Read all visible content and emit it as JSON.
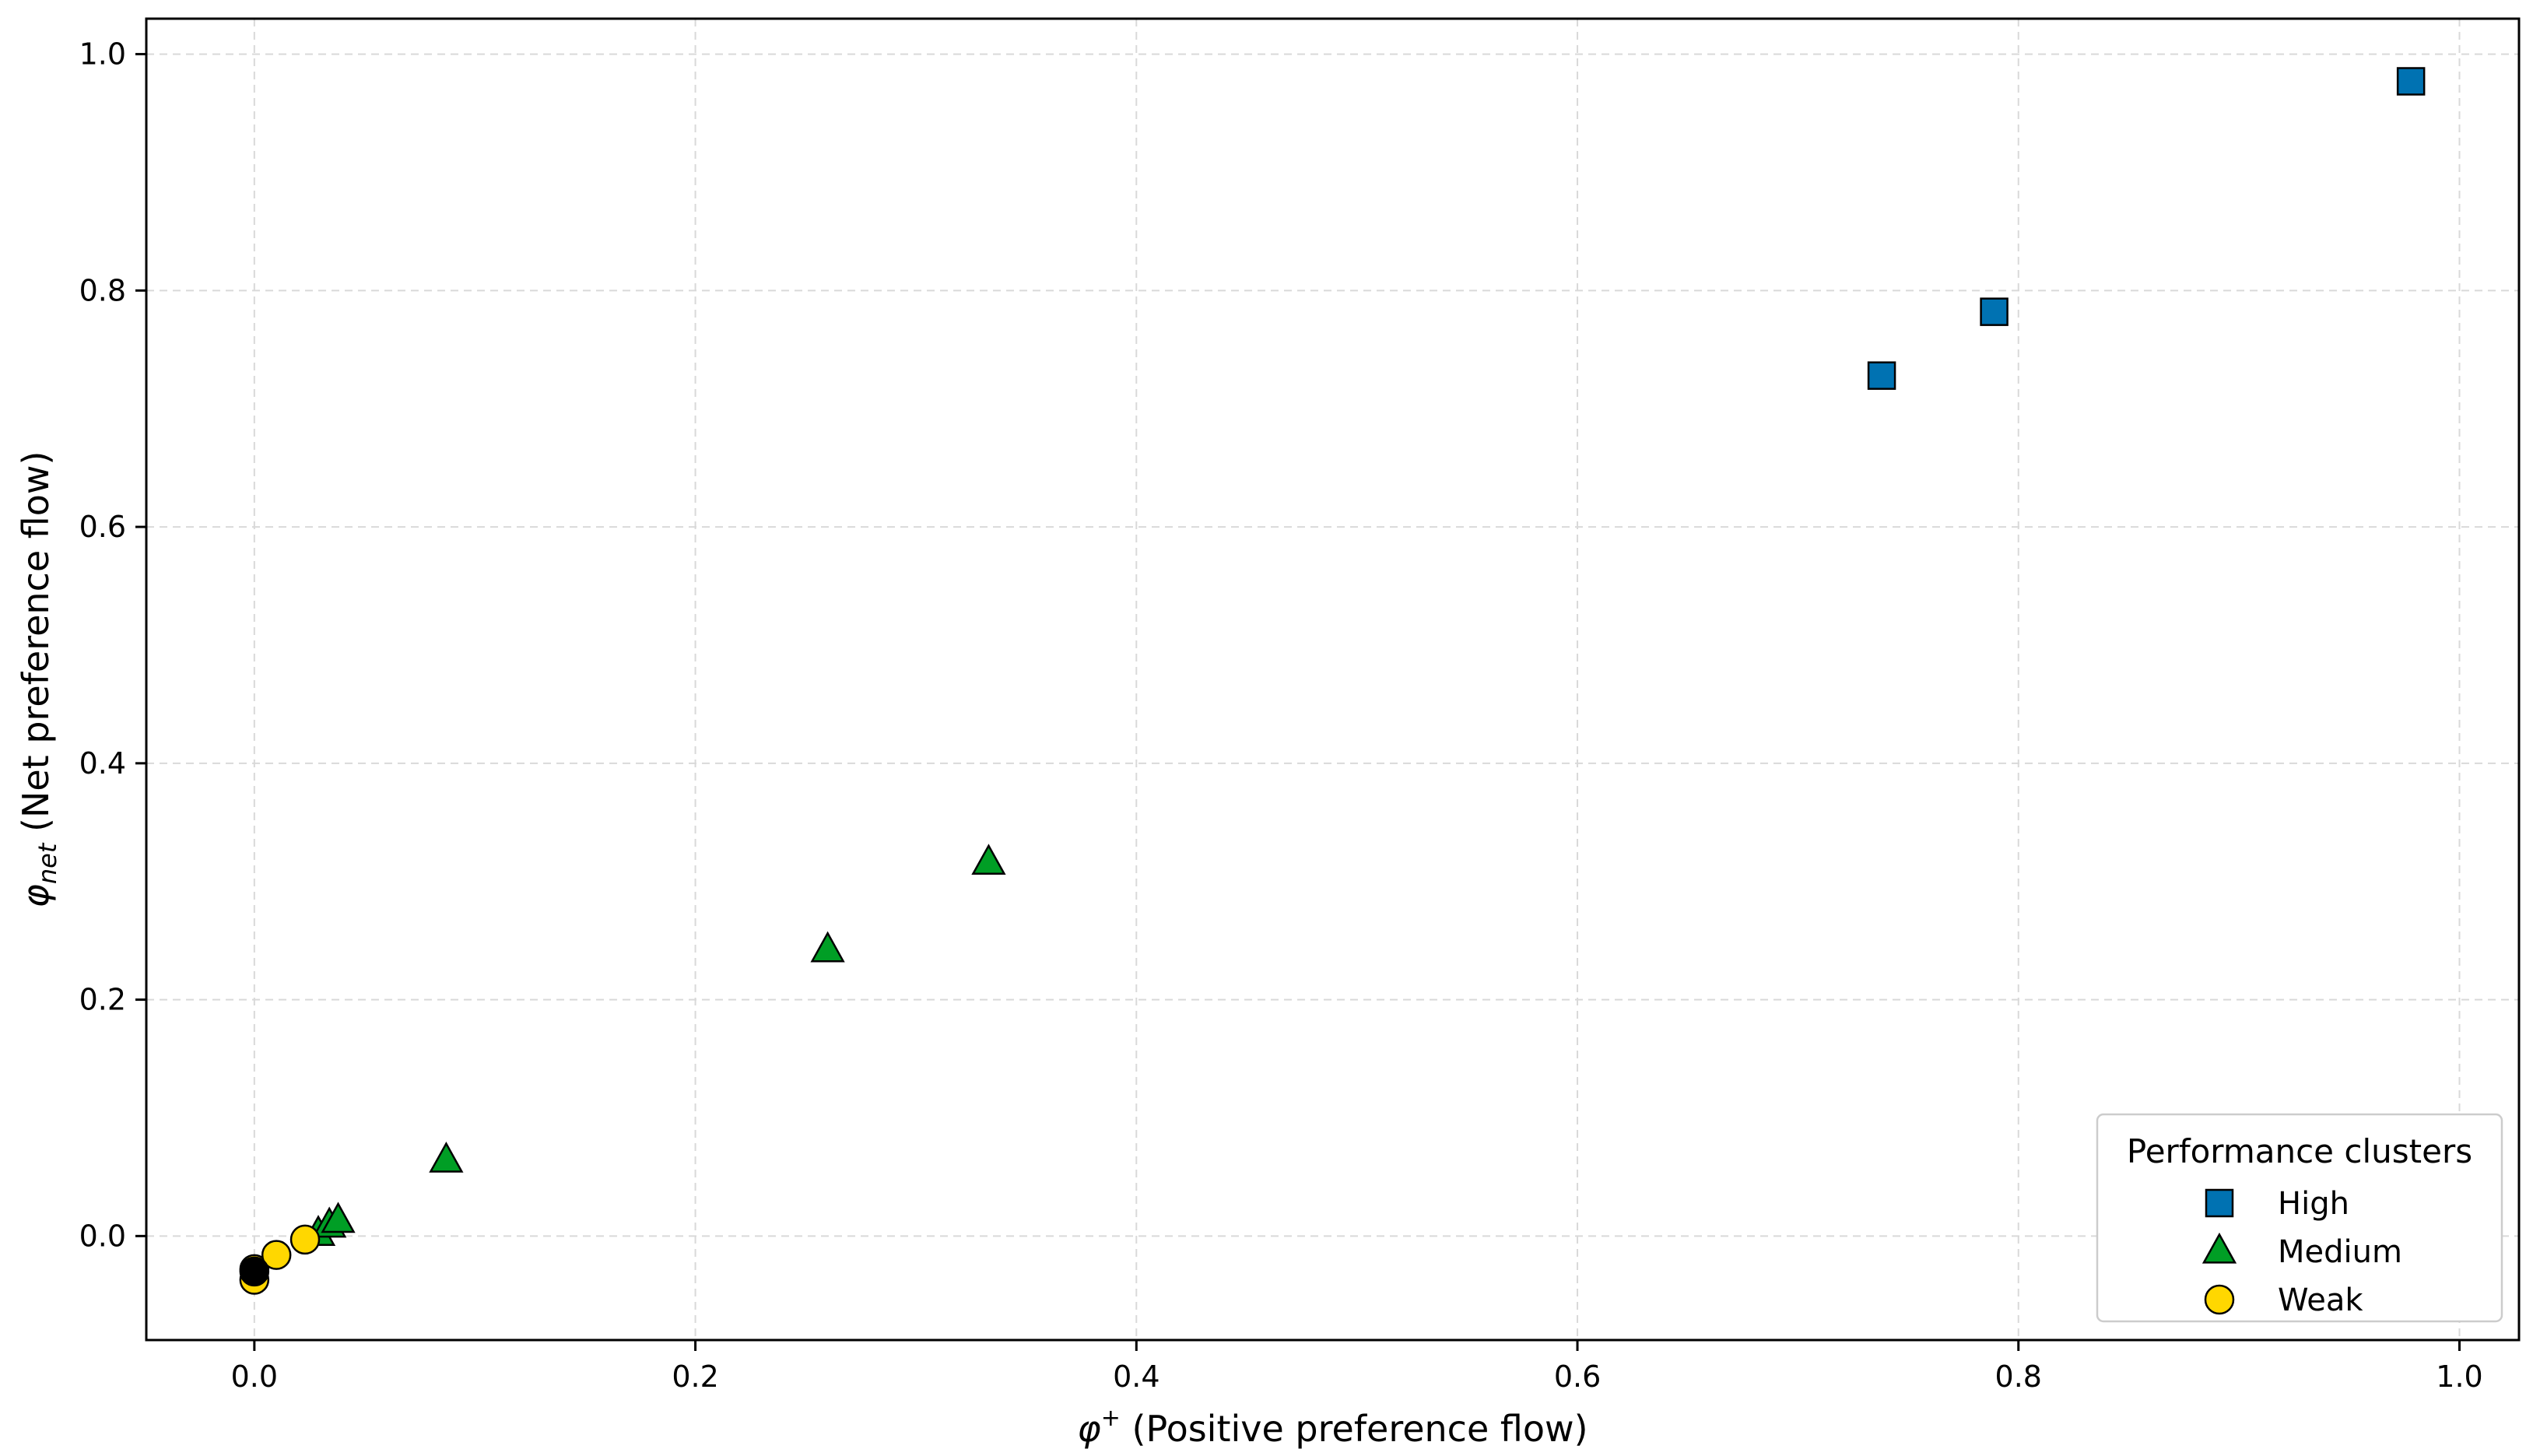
{
  "chart_data": {
    "type": "scatter",
    "title": "",
    "xlabel": {
      "symbol": "φ",
      "sup": "+",
      "text": " (Positive preference flow)"
    },
    "ylabel": {
      "symbol": "φ",
      "sub": "net",
      "text": " (Net preference flow)"
    },
    "xlim": [
      -0.049,
      1.027
    ],
    "ylim": [
      -0.088,
      1.03
    ],
    "xticks": [
      0.0,
      0.2,
      0.4,
      0.6,
      0.8,
      1.0
    ],
    "xtick_labels": [
      "0.0",
      "0.2",
      "0.4",
      "0.6",
      "0.8",
      "1.0"
    ],
    "yticks": [
      0.0,
      0.2,
      0.4,
      0.6,
      0.8,
      1.0
    ],
    "ytick_labels": [
      "0.0",
      "0.2",
      "0.4",
      "0.6",
      "0.8",
      "1.0"
    ],
    "grid": true,
    "legend": {
      "title": "Performance clusters",
      "location": "lower-right"
    },
    "series": [
      {
        "name": "High",
        "marker": "square",
        "color": "#0072B2",
        "points": [
          [
            0.738,
            0.728
          ],
          [
            0.789,
            0.782
          ],
          [
            0.978,
            0.977
          ]
        ]
      },
      {
        "name": "Medium",
        "marker": "triangle",
        "color": "#009E25",
        "points": [
          [
            0.029,
            0.002
          ],
          [
            0.034,
            0.009
          ],
          [
            0.038,
            0.013
          ],
          [
            0.087,
            0.064
          ],
          [
            0.26,
            0.242
          ],
          [
            0.333,
            0.316
          ]
        ]
      },
      {
        "name": "Weak",
        "marker": "circle",
        "color": "#FFD700",
        "points": [
          [
            0.0,
            -0.028
          ],
          [
            0.0,
            -0.037
          ],
          [
            0.01,
            -0.016
          ],
          [
            0.023,
            -0.003
          ]
        ]
      },
      {
        "name": "",
        "marker": "circle",
        "color": "#000000",
        "points": [
          [
            0.0,
            -0.03
          ]
        ]
      }
    ]
  }
}
